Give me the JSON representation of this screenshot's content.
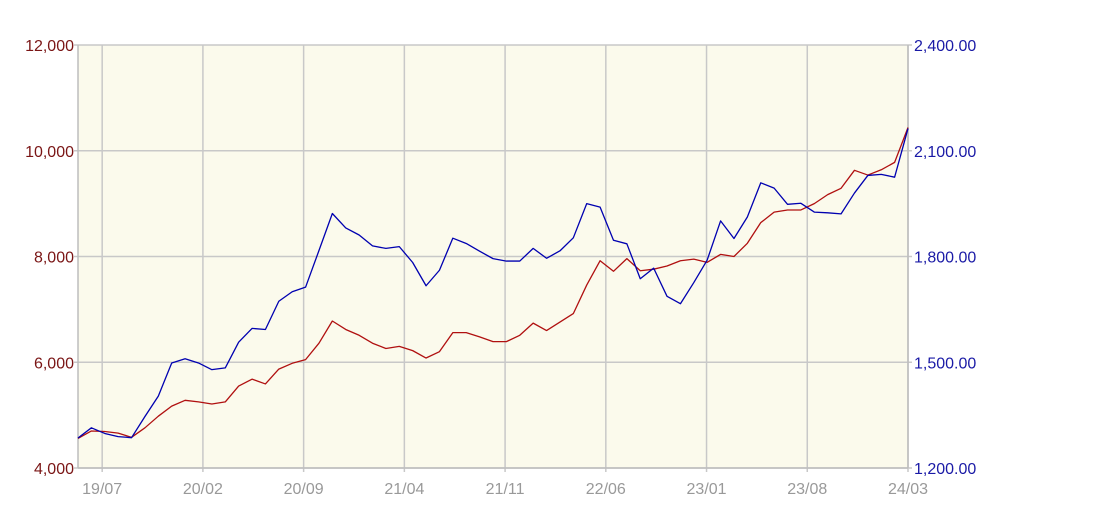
{
  "chart_data": {
    "type": "line",
    "x_tick_labels": [
      "19/07",
      "20/02",
      "20/09",
      "21/04",
      "21/11",
      "22/06",
      "23/01",
      "23/08",
      "24/03"
    ],
    "y_left": {
      "ylim": [
        4000,
        12000
      ],
      "tick_labels": [
        "4,000",
        "6,000",
        "8,000",
        "10,000",
        "12,000"
      ],
      "color": "#8b1a1a"
    },
    "y_right": {
      "ylim": [
        1200,
        2400
      ],
      "tick_labels": [
        "1,200.00",
        "1,500.00",
        "1,800.00",
        "2,100.00",
        "2,400.00"
      ],
      "color": "#1a1aa6"
    },
    "grid": true,
    "plot_background": "#fbfaec",
    "series": [
      {
        "axis": "left",
        "color": "#b01010",
        "values": [
          4560,
          4700,
          4690,
          4660,
          4580,
          4760,
          4980,
          5170,
          5280,
          5250,
          5210,
          5250,
          5550,
          5680,
          5590,
          5870,
          5980,
          6050,
          6360,
          6780,
          6620,
          6510,
          6360,
          6260,
          6300,
          6220,
          6080,
          6200,
          6560,
          6560,
          6480,
          6390,
          6390,
          6510,
          6740,
          6600,
          6760,
          6920,
          7460,
          7920,
          7720,
          7960,
          7730,
          7760,
          7820,
          7920,
          7950,
          7890,
          8040,
          8000,
          8250,
          8640,
          8840,
          8880,
          8880,
          9000,
          9170,
          9290,
          9630,
          9540,
          9640,
          9780,
          10440
        ]
      },
      {
        "axis": "right",
        "color": "#0000b0",
        "values": [
          1285,
          1314,
          1298,
          1289,
          1286,
          1346,
          1404,
          1498,
          1510,
          1498,
          1479,
          1484,
          1557,
          1596,
          1593,
          1673,
          1700,
          1713,
          1817,
          1922,
          1881,
          1861,
          1830,
          1823,
          1828,
          1783,
          1717,
          1761,
          1852,
          1837,
          1815,
          1794,
          1787,
          1787,
          1823,
          1795,
          1816,
          1853,
          1950,
          1940,
          1846,
          1836,
          1737,
          1767,
          1687,
          1666,
          1726,
          1790,
          1901,
          1851,
          1912,
          2009,
          1994,
          1948,
          1951,
          1926,
          1924,
          1921,
          1980,
          2030,
          2033,
          2025,
          2163
        ]
      }
    ]
  }
}
